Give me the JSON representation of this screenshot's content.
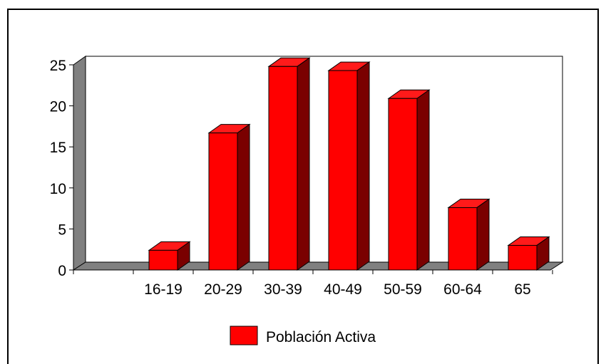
{
  "colors": {
    "bar_front": "#ff0000",
    "bar_side": "#7a0000",
    "bar_top": "#ff1a1a",
    "floor": "#808080",
    "wall_left": "#808080",
    "border": "#000000"
  },
  "chart_data": {
    "type": "bar",
    "style": "3d",
    "categories": [
      "",
      "16-19",
      "20-29",
      "30-39",
      "40-49",
      "50-59",
      "60-64",
      "65"
    ],
    "series": [
      {
        "name": "Población Activa",
        "values": [
          0,
          2.4,
          16.7,
          24.8,
          24.3,
          20.9,
          7.6,
          3.0
        ]
      }
    ],
    "yticks": [
      "0",
      "5",
      "10",
      "15",
      "20",
      "25"
    ],
    "ylim": [
      0,
      25
    ],
    "title": "",
    "xlabel": "",
    "ylabel": "",
    "grid": false,
    "legend_position": "bottom-center"
  }
}
